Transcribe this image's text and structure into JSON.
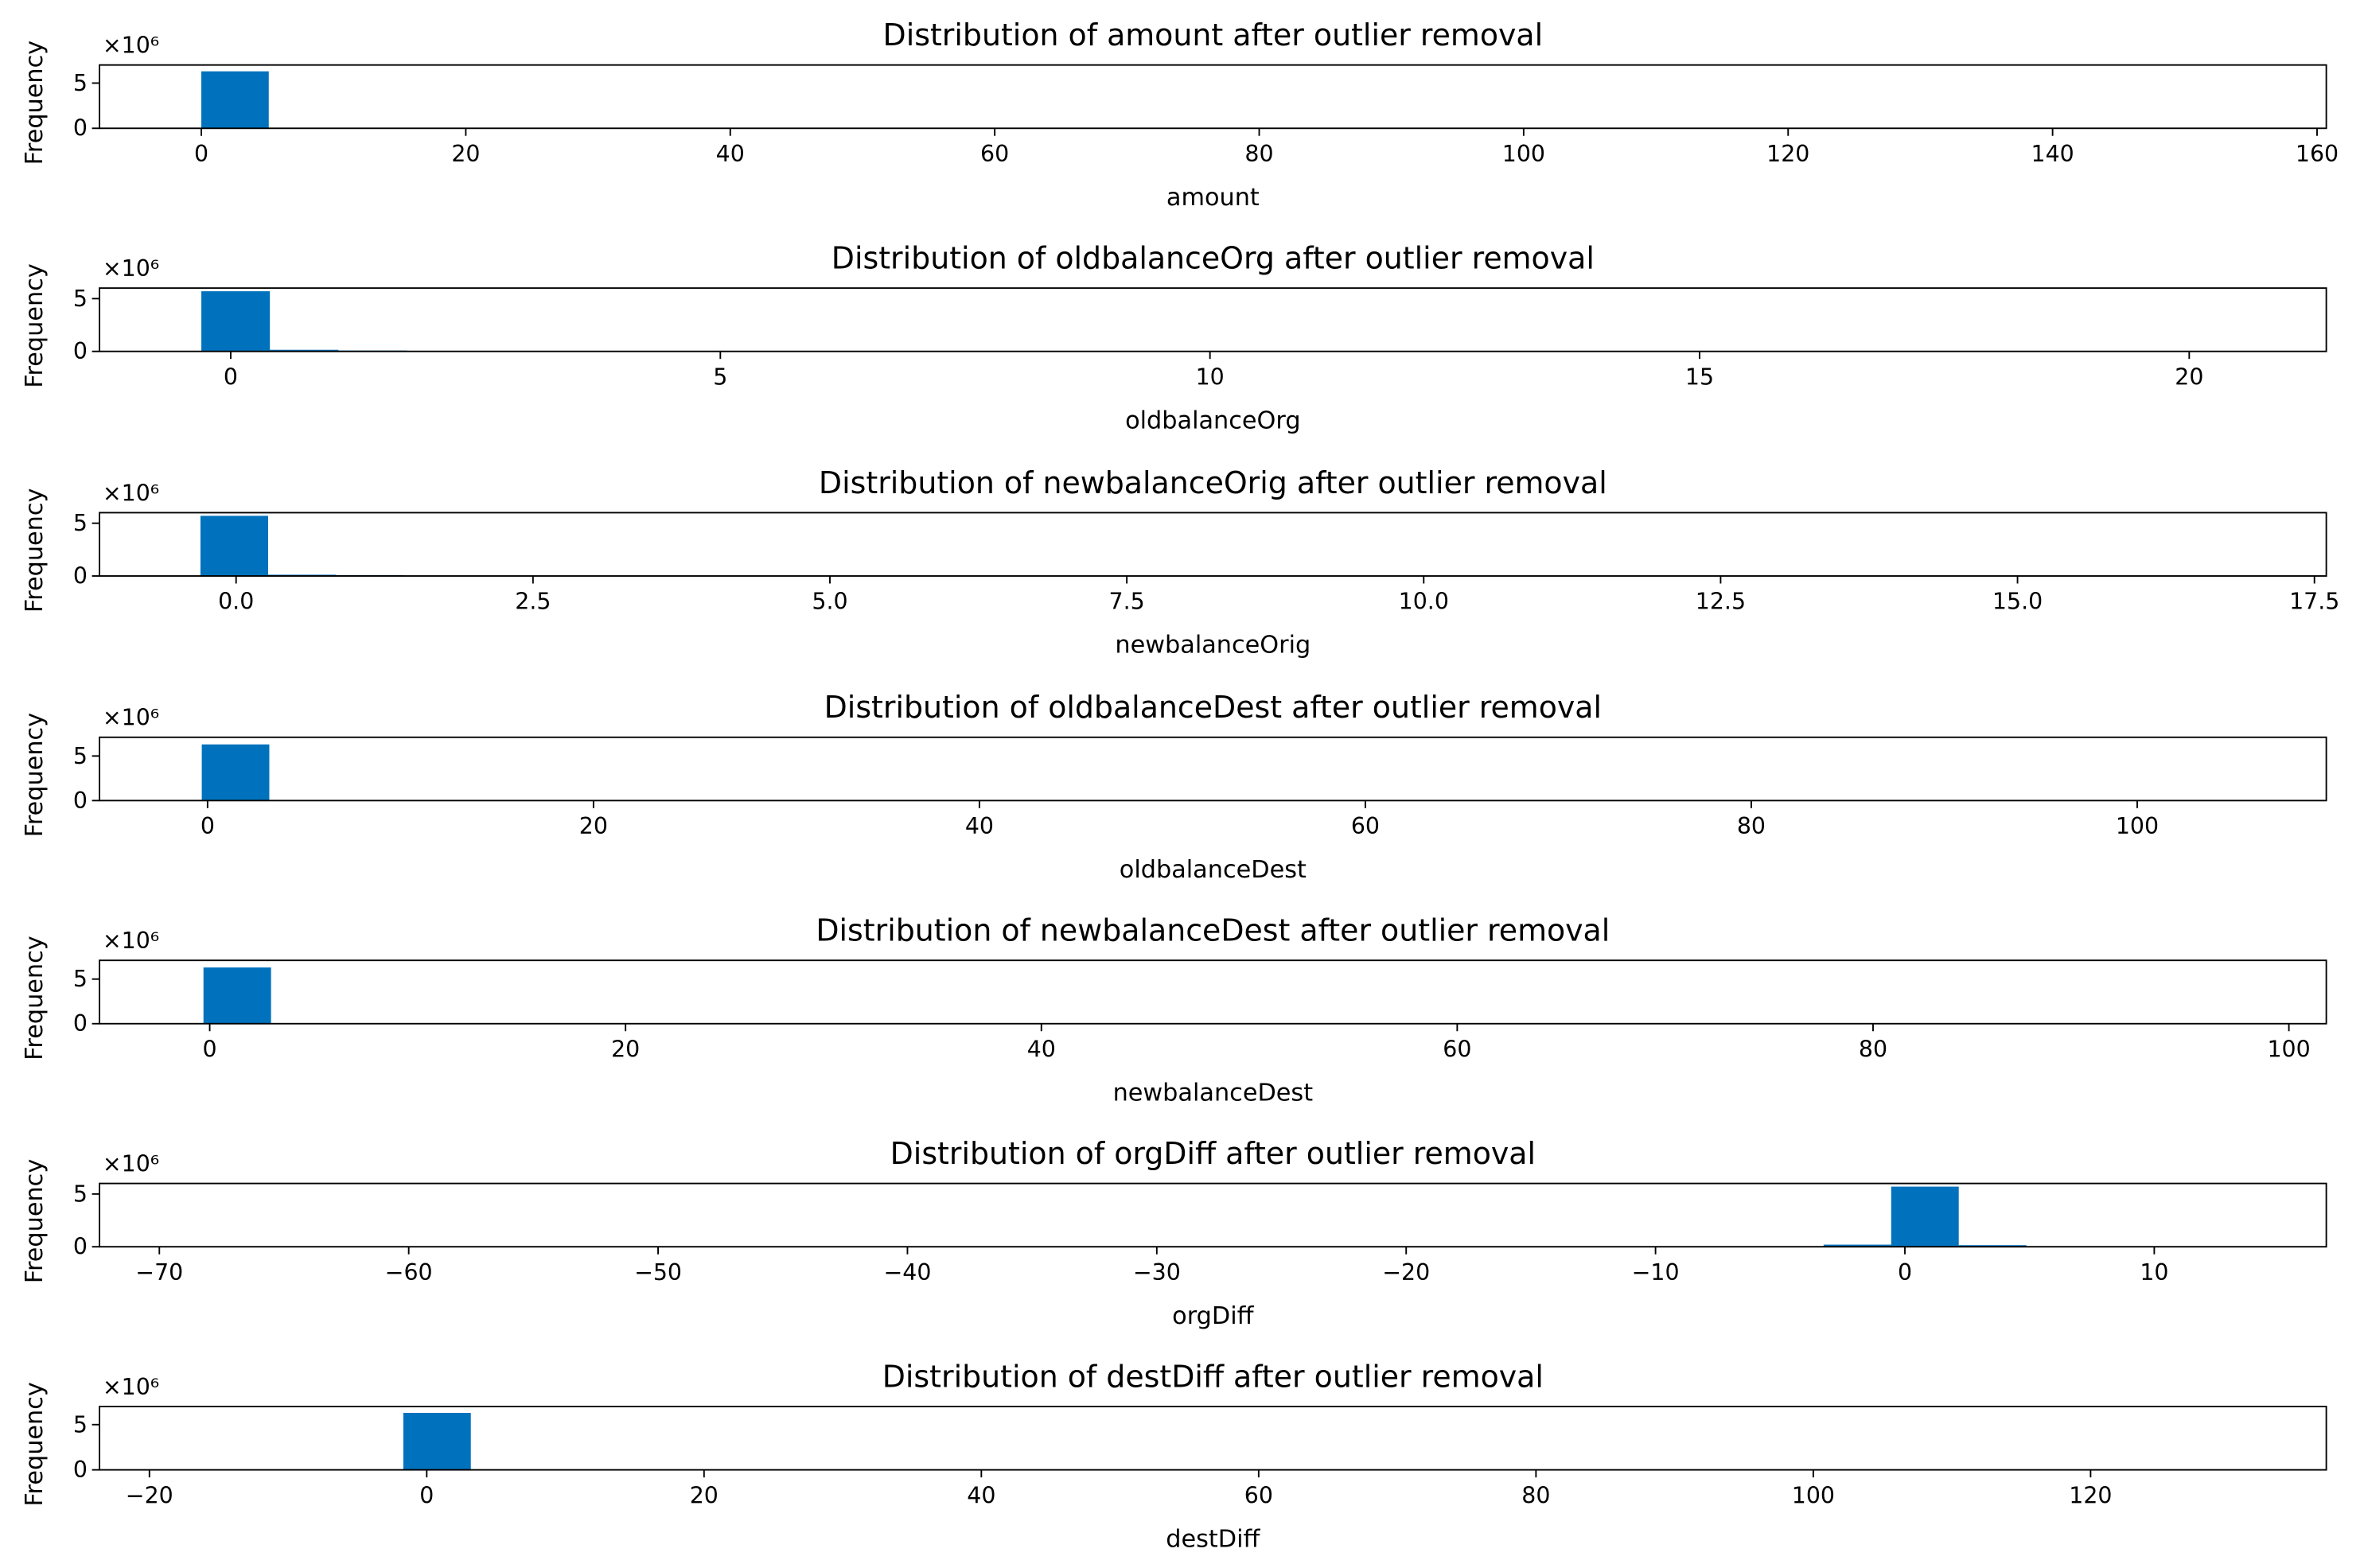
{
  "chart_data": [
    {
      "type": "histogram",
      "title": "Distribution of amount after outlier removal",
      "xlabel": "amount",
      "ylabel": "Frequency",
      "y_offset_label": "×10⁶",
      "color": "#0072bd",
      "bins": [
        0,
        5.1,
        10.2,
        15.3,
        20.4,
        25.5,
        30.6,
        35.7,
        40.8,
        45.9,
        51,
        56.1,
        61.2,
        66.3,
        71.4,
        76.5,
        81.6,
        86.7,
        91.8,
        96.9,
        102,
        107.1,
        112.2,
        117.3,
        122.4,
        127.5,
        132.6,
        137.7,
        142.8,
        147.9,
        153
      ],
      "counts": [
        6300000,
        0,
        0,
        0,
        0,
        0,
        0,
        0,
        0,
        0,
        0,
        0,
        0,
        0,
        0,
        0,
        0,
        0,
        0,
        0,
        0,
        0,
        0,
        0,
        0,
        0,
        0,
        0,
        0,
        0
      ],
      "xlim": [
        -7.7,
        160.7
      ],
      "ylim": [
        0,
        7000000
      ],
      "xticks": [
        0,
        20,
        40,
        60,
        80,
        100,
        120,
        140,
        160
      ],
      "yticks": [
        0,
        {
          "value": 5000000,
          "label": "5"
        }
      ]
    },
    {
      "type": "histogram",
      "title": "Distribution of oldbalanceOrg after outlier removal",
      "xlabel": "oldbalanceOrg",
      "ylabel": "Frequency",
      "y_offset_label": "×10⁶",
      "color": "#0072bd",
      "bins": [
        -0.3,
        0.4,
        1.1,
        1.8,
        2.5,
        3.2,
        3.9,
        4.6,
        5.3,
        6,
        6.7,
        7.4,
        8.1,
        8.8,
        9.5,
        10.2,
        10.9,
        11.6,
        12.3,
        13,
        13.7,
        14.4,
        15.1,
        15.8,
        16.5,
        17.2,
        17.9,
        18.6,
        19.3,
        20,
        20.7
      ],
      "counts": [
        5700000,
        150000,
        80000,
        50000,
        0,
        0,
        0,
        0,
        0,
        0,
        0,
        0,
        0,
        0,
        0,
        0,
        0,
        0,
        0,
        0,
        0,
        0,
        0,
        0,
        0,
        0,
        0,
        0,
        0,
        0
      ],
      "xlim": [
        -1.34,
        21.4
      ],
      "ylim": [
        0,
        6000000
      ],
      "xticks": [
        0,
        5,
        10,
        15,
        20
      ],
      "yticks": [
        0,
        {
          "value": 5000000,
          "label": "5"
        }
      ]
    },
    {
      "type": "histogram",
      "title": "Distribution of newbalanceOrig after outlier removal",
      "xlabel": "newbalanceOrig",
      "ylabel": "Frequency",
      "y_offset_label": "×10⁶",
      "color": "#0072bd",
      "bins": [
        -0.3,
        0.27,
        0.84,
        1.41,
        1.98,
        2.55,
        3.12,
        3.69,
        4.26,
        4.83,
        5.4,
        5.97,
        6.54,
        7.11,
        7.68,
        8.25,
        8.82,
        9.39,
        9.96,
        10.53,
        11.1,
        11.67,
        12.24,
        12.81,
        13.38,
        13.95,
        14.52,
        15.09,
        15.66,
        16.23,
        16.8
      ],
      "counts": [
        5700000,
        120000,
        80000,
        0,
        0,
        0,
        0,
        0,
        0,
        0,
        0,
        0,
        0,
        0,
        0,
        0,
        0,
        0,
        0,
        0,
        0,
        0,
        0,
        0,
        0,
        0,
        0,
        0,
        0,
        0
      ],
      "xlim": [
        -1.15,
        17.6
      ],
      "ylim": [
        0,
        6000000
      ],
      "xticks": [
        {
          "value": 0,
          "label": "0.0"
        },
        2.5,
        {
          "value": 5,
          "label": "5.0"
        },
        7.5,
        {
          "value": 10,
          "label": "10.0"
        },
        12.5,
        {
          "value": 15,
          "label": "15.0"
        },
        17.5
      ],
      "yticks": [
        0,
        {
          "value": 5000000,
          "label": "5"
        }
      ]
    },
    {
      "type": "histogram",
      "title": "Distribution of oldbalanceDest after outlier removal",
      "xlabel": "oldbalanceDest",
      "ylabel": "Frequency",
      "y_offset_label": "×10⁶",
      "color": "#0072bd",
      "bins": [
        -0.3,
        3.2,
        6.7,
        10.2,
        13.7,
        17.2,
        20.7,
        24.2,
        27.7,
        31.2,
        34.7,
        38.2,
        41.7,
        45.2,
        48.7,
        52.2,
        55.7,
        59.2,
        62.7,
        66.2,
        69.7,
        73.2,
        76.7,
        80.2,
        83.7,
        87.2,
        90.7,
        94.2,
        97.7,
        101.2,
        104.7
      ],
      "counts": [
        6300000,
        0,
        0,
        0,
        0,
        0,
        0,
        0,
        0,
        0,
        0,
        0,
        0,
        0,
        0,
        0,
        0,
        0,
        0,
        0,
        0,
        0,
        0,
        0,
        0,
        0,
        0,
        0,
        0,
        0
      ],
      "xlim": [
        -5.6,
        109.8
      ],
      "ylim": [
        0,
        7100000
      ],
      "xticks": [
        0,
        20,
        40,
        60,
        80,
        100
      ],
      "yticks": [
        0,
        {
          "value": 5000000,
          "label": "5"
        }
      ]
    },
    {
      "type": "histogram",
      "title": "Distribution of newbalanceDest after outlier removal",
      "xlabel": "newbalanceDest",
      "ylabel": "Frequency",
      "y_offset_label": "×10⁶",
      "color": "#0072bd",
      "bins": [
        -0.3,
        2.95,
        6.2,
        9.45,
        12.7,
        15.95,
        19.2,
        22.45,
        25.7,
        28.95,
        32.2,
        35.45,
        38.7,
        41.95,
        45.2,
        48.45,
        51.7,
        54.95,
        58.2,
        61.45,
        64.7,
        67.95,
        71.2,
        74.45,
        77.7,
        80.95,
        84.2,
        87.45,
        90.7,
        93.95,
        97.2
      ],
      "counts": [
        6300000,
        0,
        0,
        0,
        0,
        0,
        0,
        0,
        0,
        0,
        0,
        0,
        0,
        0,
        0,
        0,
        0,
        0,
        0,
        0,
        0,
        0,
        0,
        0,
        0,
        0,
        0,
        0,
        0,
        0
      ],
      "xlim": [
        -5.3,
        101.8
      ],
      "ylim": [
        0,
        7100000
      ],
      "xticks": [
        0,
        20,
        40,
        60,
        80,
        100
      ],
      "yticks": [
        0,
        {
          "value": 5000000,
          "label": "5"
        }
      ]
    },
    {
      "type": "histogram",
      "title": "Distribution of orgDiff after outlier removal",
      "xlabel": "orgDiff",
      "ylabel": "Frequency",
      "y_offset_label": "×10⁶",
      "color": "#0072bd",
      "bins": [
        -68.3,
        -65.59,
        -62.88,
        -60.17,
        -57.46,
        -54.75,
        -52.04,
        -49.33,
        -46.62,
        -43.91,
        -41.2,
        -38.49,
        -35.78,
        -33.07,
        -30.36,
        -27.65,
        -24.94,
        -22.23,
        -19.52,
        -16.81,
        -14.1,
        -11.39,
        -8.68,
        -5.97,
        -3.26,
        -0.55,
        2.16,
        4.87,
        7.58,
        10.29,
        13
      ],
      "counts": [
        0,
        0,
        0,
        0,
        0,
        0,
        0,
        0,
        0,
        0,
        0,
        0,
        0,
        0,
        0,
        0,
        0,
        0,
        0,
        0,
        0,
        0,
        0,
        0,
        200000,
        5700000,
        150000,
        0,
        0,
        0
      ],
      "xlim": [
        -72.4,
        16.9
      ],
      "ylim": [
        0,
        6000000
      ],
      "xticks": [
        {
          "value": -70,
          "label": "−70"
        },
        {
          "value": -60,
          "label": "−60"
        },
        {
          "value": -50,
          "label": "−50"
        },
        {
          "value": -40,
          "label": "−40"
        },
        {
          "value": -30,
          "label": "−30"
        },
        {
          "value": -20,
          "label": "−20"
        },
        {
          "value": -10,
          "label": "−10"
        },
        0,
        10
      ],
      "yticks": [
        0,
        {
          "value": 5000000,
          "label": "5"
        }
      ]
    },
    {
      "type": "histogram",
      "title": "Distribution of destDiff after outlier removal",
      "xlabel": "destDiff",
      "ylabel": "Frequency",
      "y_offset_label": "×10⁶",
      "color": "#0072bd",
      "bins": [
        -16.3,
        -11.43,
        -6.56,
        -1.69,
        3.18,
        8.05,
        12.92,
        17.79,
        22.66,
        27.53,
        32.4,
        37.27,
        42.14,
        47.01,
        51.88,
        56.75,
        61.62,
        66.49,
        71.36,
        76.23,
        81.1,
        85.97,
        90.84,
        95.71,
        100.58,
        105.45,
        110.32,
        115.19,
        120.06,
        124.93,
        129.8
      ],
      "counts": [
        0,
        0,
        0,
        6300000,
        0,
        0,
        0,
        0,
        0,
        0,
        0,
        0,
        0,
        0,
        0,
        0,
        0,
        0,
        0,
        0,
        0,
        0,
        0,
        0,
        0,
        0,
        0,
        0,
        0,
        0
      ],
      "xlim": [
        -23.6,
        137
      ],
      "ylim": [
        0,
        7000000
      ],
      "xticks": [
        {
          "value": -20,
          "label": "−20"
        },
        0,
        20,
        40,
        60,
        80,
        100,
        120
      ],
      "yticks": [
        0,
        {
          "value": 5000000,
          "label": "5"
        }
      ]
    }
  ]
}
